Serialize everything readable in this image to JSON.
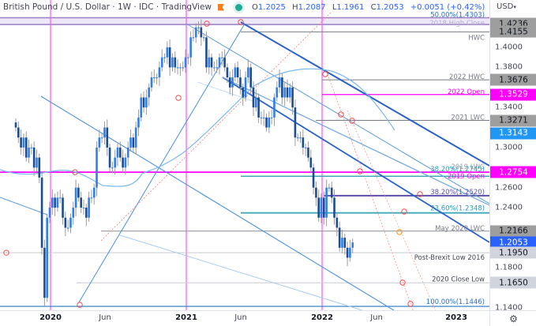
{
  "header": {
    "title": "British Pound / U.S. Dollar · 1W · IDC · TradingView",
    "ohlc": {
      "open_label": "O",
      "open": "1.2025",
      "high_label": "H",
      "high": "1.2087",
      "low_label": "L",
      "low": "1.1961",
      "close_label": "C",
      "close": "1.2053",
      "change": "+0.0051 (+0.42%)"
    }
  },
  "price_axis": {
    "currency": "USD",
    "ticks": [
      "1.4000",
      "1.3800",
      "1.3400",
      "1.3000",
      "1.2600",
      "1.2400",
      "1.1800",
      "1.1400"
    ],
    "tags": [
      {
        "value": "1.4236",
        "bg": "#9e9e9e",
        "fg": "#131722"
      },
      {
        "value": "1.4155",
        "bg": "#9e9e9e",
        "fg": "#131722"
      },
      {
        "value": "1.3676",
        "bg": "#9e9e9e",
        "fg": "#131722"
      },
      {
        "value": "1.3529",
        "bg": "#ff00ff",
        "fg": "#ffffff"
      },
      {
        "value": "1.3271",
        "bg": "#9e9e9e",
        "fg": "#131722"
      },
      {
        "value": "1.3143",
        "bg": "#2196f3",
        "fg": "#ffffff"
      },
      {
        "value": "1.2754",
        "bg": "#ff00ff",
        "fg": "#ffffff"
      },
      {
        "value": "1.2166",
        "bg": "#9e9e9e",
        "fg": "#131722"
      },
      {
        "value": "1.2053",
        "bg": "#2962ff",
        "fg": "#ffffff"
      },
      {
        "value": "1.1950",
        "bg": "#d1d4dc",
        "fg": "#131722"
      },
      {
        "value": "1.1650",
        "bg": "#d1d4dc",
        "fg": "#131722"
      }
    ]
  },
  "time_axis": {
    "labels": [
      {
        "text": "2020",
        "year": true
      },
      {
        "text": "Jun",
        "year": false
      },
      {
        "text": "2021",
        "year": true
      },
      {
        "text": "Jun",
        "year": false
      },
      {
        "text": "2022",
        "year": true
      },
      {
        "text": "Jun",
        "year": false
      },
      {
        "text": "2023",
        "year": true
      }
    ]
  },
  "settings_icon": "gear-icon",
  "chart_data": {
    "type": "candlestick",
    "title": "British Pound / U.S. Dollar · 1W · IDC",
    "xlabel": "",
    "ylabel": "USD",
    "ylim": [
      1.13,
      1.44
    ],
    "x_ticks": [
      "2020",
      "Jun",
      "2021",
      "Jun",
      "2022",
      "Jun",
      "2023"
    ],
    "y_ticks": [
      1.14,
      1.18,
      1.24,
      1.26,
      1.3,
      1.34,
      1.38,
      1.4
    ],
    "last": {
      "open": 1.2025,
      "high": 1.2087,
      "low": 1.1961,
      "close": 1.2053,
      "change": 0.0051,
      "change_pct": 0.42
    },
    "levels": [
      {
        "label": "50.00%(1.4303)",
        "value": 1.4303,
        "color": "#2196f3"
      },
      {
        "label": "2018 High Close",
        "value": 1.4236,
        "color": "#9c7fc0"
      },
      {
        "label": "HWC",
        "value": 1.4155,
        "color": "#787b86"
      },
      {
        "label": "2022 HWC",
        "value": 1.3676,
        "color": "#787b86"
      },
      {
        "label": "2022 Open",
        "value": 1.3529,
        "color": "#ff00ff"
      },
      {
        "label": "2021 LWC",
        "value": 1.3271,
        "color": "#787b86"
      },
      {
        "label": "2019 LWC",
        "value": 1.2785,
        "color": "#787b86"
      },
      {
        "label": "38.20%(1.2745)",
        "value": 1.2745,
        "color": "#2196f3"
      },
      {
        "label": "2019 Open",
        "value": 1.2754,
        "color": "#ff00ff"
      },
      {
        "label": "38.20%(1.2520)",
        "value": 1.252,
        "color": "#5b4fa8"
      },
      {
        "label": "23.60%(1.2348)",
        "value": 1.2348,
        "color": "#26a0b8"
      },
      {
        "label": "May 2020 LWC",
        "value": 1.2166,
        "color": "#787b86"
      },
      {
        "label": "Post-Brexit Low 2016",
        "value": 1.195,
        "color": "#b2b5be"
      },
      {
        "label": "2020 Close Low",
        "value": 1.165,
        "color": "#b2b5be"
      },
      {
        "label": "100.00%(1.1446)",
        "value": 1.1446,
        "color": "#2196f3"
      }
    ],
    "moving_average_last": 1.3143,
    "candles_weekly_close_approx": [
      1.32,
      1.31,
      1.3,
      1.31,
      1.29,
      1.3,
      1.3,
      1.28,
      1.29,
      1.27,
      1.2,
      1.15,
      1.23,
      1.24,
      1.25,
      1.24,
      1.25,
      1.25,
      1.23,
      1.22,
      1.22,
      1.23,
      1.24,
      1.26,
      1.25,
      1.24,
      1.24,
      1.23,
      1.25,
      1.25,
      1.26,
      1.3,
      1.31,
      1.31,
      1.32,
      1.3,
      1.28,
      1.28,
      1.29,
      1.3,
      1.29,
      1.28,
      1.29,
      1.3,
      1.31,
      1.3,
      1.32,
      1.33,
      1.35,
      1.34,
      1.35,
      1.36,
      1.37,
      1.37,
      1.37,
      1.38,
      1.39,
      1.39,
      1.4,
      1.38,
      1.39,
      1.38,
      1.38,
      1.38,
      1.38,
      1.39,
      1.39,
      1.41,
      1.41,
      1.42,
      1.42,
      1.41,
      1.41,
      1.38,
      1.39,
      1.38,
      1.38,
      1.38,
      1.39,
      1.39,
      1.38,
      1.37,
      1.36,
      1.37,
      1.38,
      1.37,
      1.36,
      1.35,
      1.37,
      1.38,
      1.36,
      1.34,
      1.35,
      1.33,
      1.33,
      1.33,
      1.32,
      1.33,
      1.33,
      1.35,
      1.36,
      1.37,
      1.35,
      1.36,
      1.35,
      1.36,
      1.34,
      1.31,
      1.31,
      1.31,
      1.3,
      1.3,
      1.29,
      1.28,
      1.26,
      1.25,
      1.23,
      1.25,
      1.23,
      1.26,
      1.26,
      1.25,
      1.23,
      1.22,
      1.2,
      1.21,
      1.2,
      1.19,
      1.2,
      1.2053
    ]
  }
}
